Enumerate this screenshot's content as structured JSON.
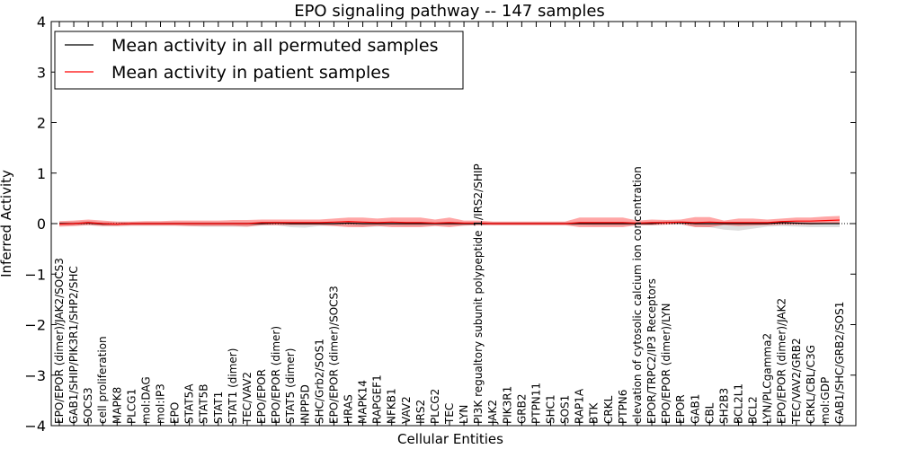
{
  "chart_data": {
    "type": "line",
    "title": "EPO signaling pathway -- 147 samples",
    "xlabel": "Cellular Entities",
    "ylabel": "Inferred Activity",
    "ylim": [
      -4,
      4
    ],
    "yticks": [
      4,
      3,
      2,
      1,
      0,
      -1,
      -2,
      -3,
      -4
    ],
    "ytick_labels": [
      "4",
      "3",
      "2",
      "1",
      "0",
      "−1",
      "−2",
      "−3",
      "−4"
    ],
    "legend_position": "top-left",
    "categories": [
      "EPO/EPOR (dimer)/JAK2/SOCS3",
      "GAB1/SHIP/PIK3R1/SHP2/SHC",
      "SOCS3",
      "cell proliferation",
      "MAPK8",
      "PLCG1",
      "mol:DAG",
      "mol:IP3",
      "EPO",
      "STAT5A",
      "STAT5B",
      "STAT1",
      "STAT1 (dimer)",
      "TEC/VAV2",
      "EPO/EPOR",
      "EPO/EPOR (dimer)",
      "STAT5 (dimer)",
      "INPP5D",
      "SHC/Grb2/SOS1",
      "EPO/EPOR (dimer)/SOCS3",
      "HRAS",
      "MAPK14",
      "RAPGEF1",
      "NFKB1",
      "VAV2",
      "IRS2",
      "PLCG2",
      "TEC",
      "LYN",
      "PI3K regualtory subunit polypeptide 1/IRS2/SHIP",
      "JAK2",
      "PIK3R1",
      "GRB2",
      "PTPN11",
      "SHC1",
      "SOS1",
      "RAP1A",
      "BTK",
      "CRKL",
      "PTPN6",
      "elevation of cytosolic calcium ion concentration",
      "EPOR/TRPC2/IP3 Receptors",
      "EPO/EPOR (dimer)/LYN",
      "EPOR",
      "GAB1",
      "CBL",
      "SH2B3",
      "BCL2L1",
      "BCL2",
      "LYN/PLCgamma2",
      "EPO/EPOR (dimer)/JAK2",
      "TEC/VAV2/GRB2",
      "CRKL/CBL/C3G",
      "mol:GDP",
      "GAB1/SHC/GRB2/SOS1"
    ],
    "series": [
      {
        "name": "Mean activity in all permuted samples",
        "color": "#000000",
        "values": [
          0.0,
          0.0,
          0.01,
          -0.01,
          -0.01,
          0.0,
          0.0,
          0.0,
          0.0,
          0.0,
          0.0,
          0.0,
          0.0,
          0.0,
          0.0,
          0.01,
          0.0,
          0.0,
          0.0,
          0.0,
          0.01,
          0.0,
          0.0,
          0.0,
          0.0,
          0.0,
          0.0,
          0.0,
          0.0,
          0.0,
          0.0,
          0.0,
          0.0,
          0.0,
          0.0,
          0.0,
          0.0,
          0.0,
          0.0,
          0.0,
          0.0,
          0.0,
          0.02,
          0.02,
          0.0,
          0.0,
          0.0,
          0.0,
          0.0,
          0.0,
          0.02,
          0.01,
          0.0,
          0.0,
          0.0
        ],
        "band_upper": [
          0.03,
          0.04,
          0.05,
          0.03,
          0.03,
          0.03,
          0.03,
          0.03,
          0.03,
          0.03,
          0.03,
          0.03,
          0.03,
          0.03,
          0.03,
          0.04,
          0.03,
          0.03,
          0.03,
          0.03,
          0.04,
          0.03,
          0.03,
          0.03,
          0.03,
          0.03,
          0.03,
          0.03,
          0.03,
          0.03,
          0.03,
          0.03,
          0.03,
          0.03,
          0.03,
          0.03,
          0.03,
          0.03,
          0.03,
          0.03,
          0.03,
          0.03,
          0.05,
          0.05,
          0.03,
          0.03,
          0.03,
          0.03,
          0.03,
          0.03,
          0.05,
          0.04,
          0.03,
          0.03,
          0.03
        ],
        "band_lower": [
          -0.04,
          -0.04,
          -0.03,
          -0.05,
          -0.05,
          -0.04,
          -0.04,
          -0.04,
          -0.04,
          -0.05,
          -0.06,
          -0.06,
          -0.06,
          -0.06,
          -0.04,
          -0.03,
          -0.07,
          -0.08,
          -0.05,
          -0.04,
          -0.04,
          -0.06,
          -0.06,
          -0.04,
          -0.05,
          -0.05,
          -0.04,
          -0.04,
          -0.04,
          -0.03,
          -0.03,
          -0.03,
          -0.03,
          -0.03,
          -0.03,
          -0.03,
          -0.03,
          -0.04,
          -0.04,
          -0.04,
          -0.03,
          -0.03,
          -0.02,
          -0.02,
          -0.06,
          -0.07,
          -0.12,
          -0.14,
          -0.1,
          -0.06,
          -0.05,
          -0.06,
          -0.07,
          -0.07,
          -0.07
        ]
      },
      {
        "name": "Mean activity in patient samples",
        "color": "#ff0000",
        "values": [
          -0.01,
          0.0,
          0.02,
          0.0,
          -0.01,
          0.0,
          0.0,
          0.0,
          0.0,
          0.0,
          0.0,
          0.0,
          0.0,
          0.0,
          0.02,
          0.02,
          0.02,
          0.02,
          0.02,
          0.03,
          0.04,
          0.03,
          0.02,
          0.03,
          0.02,
          0.02,
          0.01,
          0.02,
          0.01,
          0.01,
          0.0,
          0.0,
          0.0,
          0.0,
          0.0,
          0.0,
          0.02,
          0.02,
          0.02,
          0.02,
          0.01,
          0.02,
          0.02,
          0.03,
          0.02,
          0.03,
          0.02,
          0.02,
          0.02,
          0.02,
          0.04,
          0.05,
          0.05,
          0.06,
          0.07
        ],
        "band_upper": [
          0.05,
          0.06,
          0.08,
          0.06,
          0.04,
          0.04,
          0.05,
          0.05,
          0.06,
          0.06,
          0.06,
          0.06,
          0.07,
          0.07,
          0.08,
          0.08,
          0.08,
          0.08,
          0.08,
          0.1,
          0.12,
          0.12,
          0.1,
          0.12,
          0.12,
          0.12,
          0.08,
          0.12,
          0.06,
          0.06,
          0.04,
          0.04,
          0.04,
          0.04,
          0.04,
          0.04,
          0.12,
          0.12,
          0.12,
          0.12,
          0.06,
          0.08,
          0.07,
          0.08,
          0.13,
          0.13,
          0.06,
          0.1,
          0.1,
          0.08,
          0.1,
          0.12,
          0.12,
          0.14,
          0.15
        ],
        "band_lower": [
          -0.06,
          -0.05,
          -0.03,
          -0.05,
          -0.05,
          -0.04,
          -0.04,
          -0.04,
          -0.04,
          -0.05,
          -0.05,
          -0.05,
          -0.05,
          -0.06,
          -0.03,
          -0.03,
          -0.03,
          -0.03,
          -0.03,
          -0.05,
          -0.07,
          -0.07,
          -0.05,
          -0.07,
          -0.07,
          -0.07,
          -0.05,
          -0.07,
          -0.04,
          -0.03,
          -0.03,
          -0.03,
          -0.03,
          -0.03,
          -0.03,
          -0.03,
          -0.07,
          -0.07,
          -0.07,
          -0.07,
          -0.03,
          -0.03,
          -0.02,
          -0.01,
          -0.07,
          -0.07,
          -0.03,
          -0.05,
          -0.04,
          -0.03,
          -0.02,
          -0.02,
          -0.02,
          -0.01,
          -0.01
        ]
      }
    ]
  }
}
